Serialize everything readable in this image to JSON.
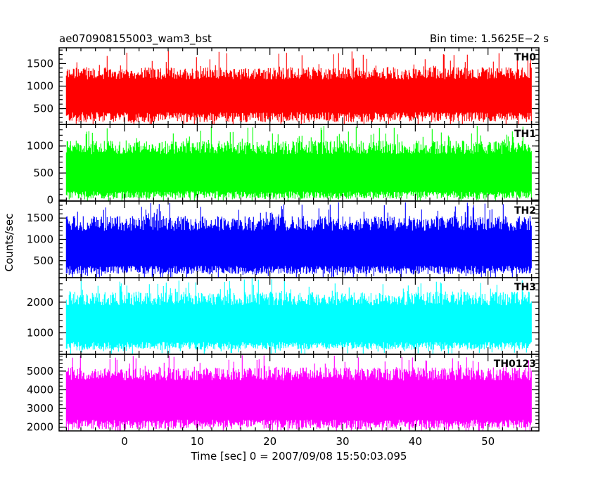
{
  "chart_data": {
    "type": "line",
    "title": "ae070908155003_wam3_bst",
    "subtitle": "Bin time: 1.5625E−2 s",
    "xlabel": "Time [sec] 0 = 2007/09/08 15:50:03.095",
    "ylabel": "Counts/sec",
    "xlim": [
      -9,
      57
    ],
    "data_x_range": [
      -8,
      56
    ],
    "bin_time_s": 0.015625,
    "x_ticks": [
      0,
      10,
      20,
      30,
      40,
      50
    ],
    "x_tick_labels": [
      "0",
      "10",
      "20",
      "30",
      "40",
      "50"
    ],
    "grid": false,
    "series": [
      {
        "name": "TH0",
        "color": "#ff0000",
        "ylim": [
          150,
          1850
        ],
        "y_ticks": [
          500,
          1000,
          1500
        ],
        "y_tick_labels": [
          "500",
          "1000",
          "1500"
        ],
        "band_low": [
          200,
          420
        ],
        "band_high": [
          1150,
          1420
        ],
        "spike_max": 1800
      },
      {
        "name": "TH1",
        "color": "#00ff00",
        "ylim": [
          -20,
          1400
        ],
        "y_ticks": [
          0,
          500,
          1000
        ],
        "y_tick_labels": [
          "0",
          "500",
          "1000"
        ],
        "band_low": [
          20,
          160
        ],
        "band_high": [
          850,
          1100
        ],
        "spike_max": 1380
      },
      {
        "name": "TH2",
        "color": "#0000ff",
        "ylim": [
          100,
          1900
        ],
        "y_ticks": [
          500,
          1000,
          1500
        ],
        "y_tick_labels": [
          "500",
          "1000",
          "1500"
        ],
        "band_low": [
          180,
          380
        ],
        "band_high": [
          1200,
          1550
        ],
        "spike_max": 1880
      },
      {
        "name": "TH3",
        "color": "#00ffff",
        "ylim": [
          300,
          2800
        ],
        "y_ticks": [
          1000,
          2000
        ],
        "y_tick_labels": [
          "1000",
          "2000"
        ],
        "band_low": [
          450,
          700
        ],
        "band_high": [
          1900,
          2350
        ],
        "spike_max": 2780
      },
      {
        "name": "TH0123",
        "color": "#ff00ff",
        "ylim": [
          1800,
          5900
        ],
        "y_ticks": [
          2000,
          3000,
          4000,
          5000
        ],
        "y_tick_labels": [
          "2000",
          "3000",
          "4000",
          "5000"
        ],
        "band_low": [
          1900,
          2400
        ],
        "band_high": [
          4500,
          5200
        ],
        "spike_max": 5850
      }
    ]
  }
}
